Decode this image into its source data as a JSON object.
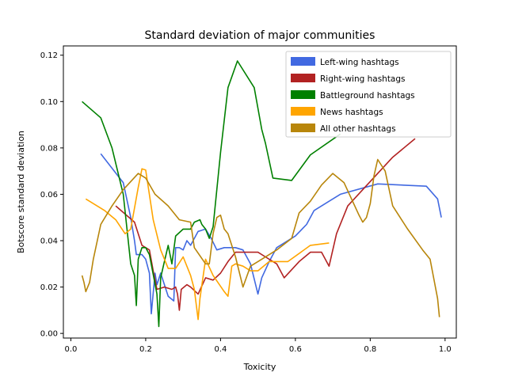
{
  "chart_data": {
    "type": "line",
    "title": "Standard deviation of major communities",
    "xlabel": "Toxicity",
    "ylabel": "Botscore standard deviation",
    "xlim": [
      -0.02,
      1.03
    ],
    "ylim": [
      -0.002,
      0.124
    ],
    "x_ticks": [
      "0.0",
      "0.2",
      "0.4",
      "0.6",
      "0.8",
      "1.0"
    ],
    "y_ticks": [
      "0.00",
      "0.02",
      "0.04",
      "0.06",
      "0.08",
      "0.10",
      "0.12"
    ],
    "grid": false,
    "legend_position": "top-right",
    "series": [
      {
        "name": "Left-wing hashtags",
        "color": "#4169e1",
        "x": [
          0.08,
          0.14,
          0.16,
          0.17,
          0.175,
          0.19,
          0.2,
          0.21,
          0.215,
          0.225,
          0.23,
          0.24,
          0.26,
          0.275,
          0.28,
          0.29,
          0.3,
          0.31,
          0.32,
          0.34,
          0.36,
          0.375,
          0.39,
          0.41,
          0.44,
          0.46,
          0.48,
          0.5,
          0.51,
          0.53,
          0.55,
          0.6,
          0.63,
          0.65,
          0.72,
          0.82,
          0.95,
          0.98,
          0.99
        ],
        "y": [
          0.0775,
          0.065,
          0.05,
          0.04,
          0.034,
          0.034,
          0.032,
          0.026,
          0.0085,
          0.026,
          0.021,
          0.026,
          0.016,
          0.014,
          0.037,
          0.037,
          0.036,
          0.04,
          0.038,
          0.044,
          0.045,
          0.041,
          0.036,
          0.037,
          0.037,
          0.036,
          0.03,
          0.017,
          0.024,
          0.031,
          0.037,
          0.042,
          0.047,
          0.053,
          0.06,
          0.0645,
          0.0635,
          0.058,
          0.05
        ]
      },
      {
        "name": "Right-wing hashtags",
        "color": "#b22222",
        "x": [
          0.12,
          0.17,
          0.19,
          0.2,
          0.21,
          0.22,
          0.23,
          0.25,
          0.27,
          0.28,
          0.285,
          0.29,
          0.295,
          0.31,
          0.32,
          0.34,
          0.36,
          0.38,
          0.4,
          0.42,
          0.44,
          0.46,
          0.5,
          0.52,
          0.55,
          0.57,
          0.61,
          0.64,
          0.67,
          0.69,
          0.71,
          0.74,
          0.78,
          0.82,
          0.86,
          0.92
        ],
        "y": [
          0.055,
          0.048,
          0.038,
          0.037,
          0.036,
          0.027,
          0.019,
          0.02,
          0.019,
          0.02,
          0.017,
          0.01,
          0.019,
          0.021,
          0.02,
          0.017,
          0.024,
          0.023,
          0.026,
          0.031,
          0.035,
          0.035,
          0.035,
          0.033,
          0.03,
          0.024,
          0.031,
          0.035,
          0.035,
          0.029,
          0.043,
          0.055,
          0.062,
          0.069,
          0.076,
          0.084
        ]
      },
      {
        "name": "Battleground hashtags",
        "color": "#008000",
        "x": [
          0.03,
          0.08,
          0.11,
          0.14,
          0.16,
          0.17,
          0.175,
          0.18,
          0.19,
          0.2,
          0.21,
          0.23,
          0.235,
          0.24,
          0.25,
          0.26,
          0.27,
          0.28,
          0.3,
          0.32,
          0.33,
          0.345,
          0.35,
          0.36,
          0.37,
          0.38,
          0.4,
          0.42,
          0.445,
          0.49,
          0.51,
          0.52,
          0.54,
          0.59,
          0.64,
          0.72
        ],
        "y": [
          0.1,
          0.093,
          0.08,
          0.06,
          0.03,
          0.025,
          0.012,
          0.032,
          0.037,
          0.037,
          0.034,
          0.017,
          0.003,
          0.024,
          0.031,
          0.038,
          0.03,
          0.042,
          0.045,
          0.045,
          0.048,
          0.049,
          0.047,
          0.045,
          0.041,
          0.046,
          0.078,
          0.106,
          0.1175,
          0.106,
          0.088,
          0.082,
          0.067,
          0.066,
          0.077,
          0.086
        ]
      },
      {
        "name": "News hashtags",
        "color": "#ffa500",
        "x": [
          0.04,
          0.09,
          0.12,
          0.145,
          0.16,
          0.18,
          0.19,
          0.2,
          0.22,
          0.24,
          0.26,
          0.28,
          0.3,
          0.32,
          0.33,
          0.34,
          0.345,
          0.36,
          0.38,
          0.41,
          0.42,
          0.43,
          0.44,
          0.46,
          0.48,
          0.5,
          0.53,
          0.58,
          0.64,
          0.69
        ],
        "y": [
          0.058,
          0.053,
          0.049,
          0.043,
          0.045,
          0.063,
          0.071,
          0.0705,
          0.049,
          0.036,
          0.028,
          0.028,
          0.033,
          0.025,
          0.019,
          0.006,
          0.015,
          0.032,
          0.025,
          0.018,
          0.016,
          0.029,
          0.03,
          0.029,
          0.027,
          0.027,
          0.031,
          0.031,
          0.038,
          0.039
        ]
      },
      {
        "name": "All other hashtags",
        "color": "#b8860b",
        "x": [
          0.03,
          0.035,
          0.04,
          0.05,
          0.06,
          0.08,
          0.11,
          0.14,
          0.18,
          0.2,
          0.225,
          0.26,
          0.29,
          0.32,
          0.33,
          0.36,
          0.37,
          0.38,
          0.39,
          0.4,
          0.41,
          0.42,
          0.44,
          0.46,
          0.48,
          0.5,
          0.55,
          0.59,
          0.61,
          0.64,
          0.67,
          0.7,
          0.73,
          0.77,
          0.78,
          0.79,
          0.8,
          0.81,
          0.82,
          0.84,
          0.86,
          0.9,
          0.94,
          0.96,
          0.98,
          0.985
        ],
        "y": [
          0.025,
          0.022,
          0.018,
          0.022,
          0.032,
          0.047,
          0.055,
          0.062,
          0.069,
          0.067,
          0.06,
          0.055,
          0.049,
          0.048,
          0.037,
          0.03,
          0.03,
          0.043,
          0.05,
          0.051,
          0.045,
          0.043,
          0.033,
          0.02,
          0.029,
          0.031,
          0.036,
          0.041,
          0.052,
          0.057,
          0.064,
          0.069,
          0.065,
          0.051,
          0.048,
          0.05,
          0.056,
          0.068,
          0.075,
          0.07,
          0.055,
          0.045,
          0.036,
          0.032,
          0.015,
          0.007
        ]
      }
    ]
  }
}
